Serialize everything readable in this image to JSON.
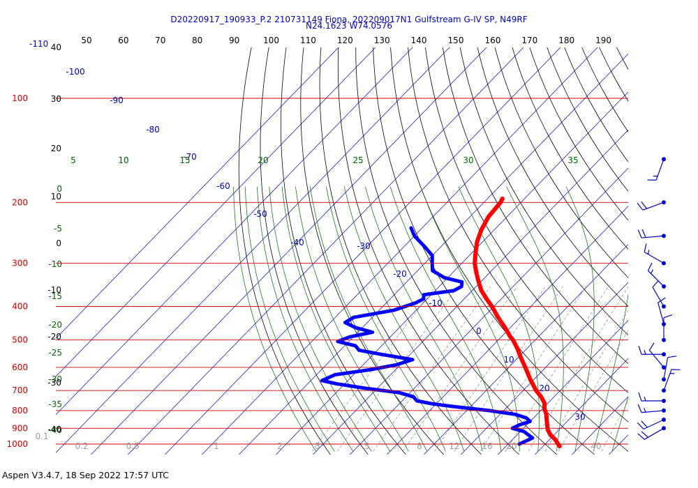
{
  "header": {
    "title_line1": "D20220917_190933_P.2 210731149 Fiona, 202209017N1 Gulfstream G-IV SP, N49RF",
    "title_line2": "N24.1623 W74.0576"
  },
  "footer": {
    "version": "Aspen V3.4.7, 18 Sep 2022  17:57 UTC"
  },
  "chart_data": {
    "type": "line",
    "subtype": "skew-T log-P sounding",
    "colors": {
      "temperature": "#ff0000",
      "dewpoint": "#0000ff",
      "isobars": "#cc0000",
      "isotherms": "#0000cc",
      "dry_adiabats": "#000000",
      "moist_adiabats": "#006400",
      "mixing_ratio": "#777777",
      "wind_barbs": "#0000cc"
    },
    "pressure_ticks": [
      {
        "p": 100,
        "label": "100"
      },
      {
        "p": 200,
        "label": "200"
      },
      {
        "p": 300,
        "label": "300"
      },
      {
        "p": 400,
        "label": "400"
      },
      {
        "p": 500,
        "label": "500"
      },
      {
        "p": 600,
        "label": "600"
      },
      {
        "p": 700,
        "label": "700"
      },
      {
        "p": 800,
        "label": "800"
      },
      {
        "p": 900,
        "label": "900"
      },
      {
        "p": 1000,
        "label": "1000"
      }
    ],
    "top_axis_labels": [
      "50",
      "60",
      "70",
      "80",
      "90",
      "100",
      "110",
      "120",
      "130",
      "140",
      "150",
      "160",
      "170",
      "180",
      "190"
    ],
    "top_left_label": "-110",
    "isotherm_labels": [
      "-100",
      "-90",
      "-80",
      "-70",
      "-60",
      "-50",
      "-40",
      "-30",
      "-20",
      "-10",
      "0",
      "10",
      "20",
      "30"
    ],
    "moist_top_labels": [
      "5",
      "10",
      "15",
      "20",
      "25",
      "30",
      "35"
    ],
    "left_temp_labels": [
      "0",
      "-5",
      "-10",
      "-15",
      "-20",
      "-25",
      "-30",
      "-35",
      "-40"
    ],
    "left_dry_labels": [
      "40",
      "30",
      "20",
      "10",
      "0",
      "-10",
      "-20",
      "-30",
      "-40"
    ],
    "mixing_ratio_labels": [
      "0.1",
      "0.2",
      "0.5",
      "1",
      "2",
      "3",
      "5",
      "8",
      "12",
      "16",
      "20",
      "40"
    ],
    "temperature_profile": [
      [
        195,
        -56
      ],
      [
        200,
        -55.5
      ],
      [
        220,
        -55
      ],
      [
        240,
        -53.5
      ],
      [
        260,
        -51.5
      ],
      [
        280,
        -49
      ],
      [
        300,
        -46.5
      ],
      [
        320,
        -43.5
      ],
      [
        340,
        -40.5
      ],
      [
        360,
        -37.5
      ],
      [
        380,
        -34
      ],
      [
        400,
        -30.5
      ],
      [
        430,
        -26
      ],
      [
        460,
        -21.5
      ],
      [
        490,
        -17.5
      ],
      [
        500,
        -16
      ],
      [
        530,
        -12.5
      ],
      [
        560,
        -9.5
      ],
      [
        600,
        -5.5
      ],
      [
        650,
        -1
      ],
      [
        700,
        3.5
      ],
      [
        730,
        6.5
      ],
      [
        760,
        9
      ],
      [
        790,
        10.5
      ],
      [
        820,
        12.5
      ],
      [
        850,
        14
      ],
      [
        880,
        15.5
      ],
      [
        910,
        17
      ],
      [
        940,
        19
      ],
      [
        970,
        21.5
      ],
      [
        1000,
        23.5
      ],
      [
        1015,
        24.5
      ]
    ],
    "dewpoint_profile": [
      [
        237,
        -73
      ],
      [
        250,
        -70
      ],
      [
        270,
        -64
      ],
      [
        285,
        -60
      ],
      [
        300,
        -58
      ],
      [
        315,
        -56
      ],
      [
        330,
        -51
      ],
      [
        340,
        -45
      ],
      [
        350,
        -44
      ],
      [
        360,
        -45
      ],
      [
        370,
        -52
      ],
      [
        380,
        -51
      ],
      [
        390,
        -52
      ],
      [
        410,
        -56
      ],
      [
        430,
        -65
      ],
      [
        445,
        -66
      ],
      [
        460,
        -62
      ],
      [
        475,
        -56
      ],
      [
        490,
        -61
      ],
      [
        505,
        -63
      ],
      [
        520,
        -57
      ],
      [
        535,
        -55
      ],
      [
        550,
        -48
      ],
      [
        570,
        -38
      ],
      [
        590,
        -41
      ],
      [
        610,
        -47
      ],
      [
        630,
        -55
      ],
      [
        655,
        -57
      ],
      [
        670,
        -52
      ],
      [
        690,
        -43
      ],
      [
        710,
        -33
      ],
      [
        730,
        -28
      ],
      [
        750,
        -26
      ],
      [
        765,
        -21
      ],
      [
        780,
        -14
      ],
      [
        800,
        -4
      ],
      [
        820,
        4
      ],
      [
        840,
        8
      ],
      [
        860,
        10
      ],
      [
        880,
        8
      ],
      [
        900,
        7
      ],
      [
        920,
        11
      ],
      [
        940,
        13
      ],
      [
        960,
        15
      ],
      [
        980,
        14
      ],
      [
        1000,
        13
      ]
    ],
    "wind_barbs": [
      {
        "p": 150,
        "speed_kt": 15,
        "dir": 200
      },
      {
        "p": 200,
        "speed_kt": 20,
        "dir": 250
      },
      {
        "p": 250,
        "speed_kt": 20,
        "dir": 265
      },
      {
        "p": 300,
        "speed_kt": 15,
        "dir": 300
      },
      {
        "p": 350,
        "speed_kt": 15,
        "dir": 315
      },
      {
        "p": 400,
        "speed_kt": 10,
        "dir": 330
      },
      {
        "p": 450,
        "speed_kt": 10,
        "dir": 345
      },
      {
        "p": 500,
        "speed_kt": 10,
        "dir": 0
      },
      {
        "p": 550,
        "speed_kt": 15,
        "dir": 270
      },
      {
        "p": 600,
        "speed_kt": 10,
        "dir": 320
      },
      {
        "p": 650,
        "speed_kt": 10,
        "dir": 10
      },
      {
        "p": 700,
        "speed_kt": 15,
        "dir": 20
      },
      {
        "p": 750,
        "speed_kt": 15,
        "dir": 270
      },
      {
        "p": 800,
        "speed_kt": 15,
        "dir": 265
      },
      {
        "p": 850,
        "speed_kt": 20,
        "dir": 245
      },
      {
        "p": 900,
        "speed_kt": 20,
        "dir": 240
      }
    ]
  }
}
